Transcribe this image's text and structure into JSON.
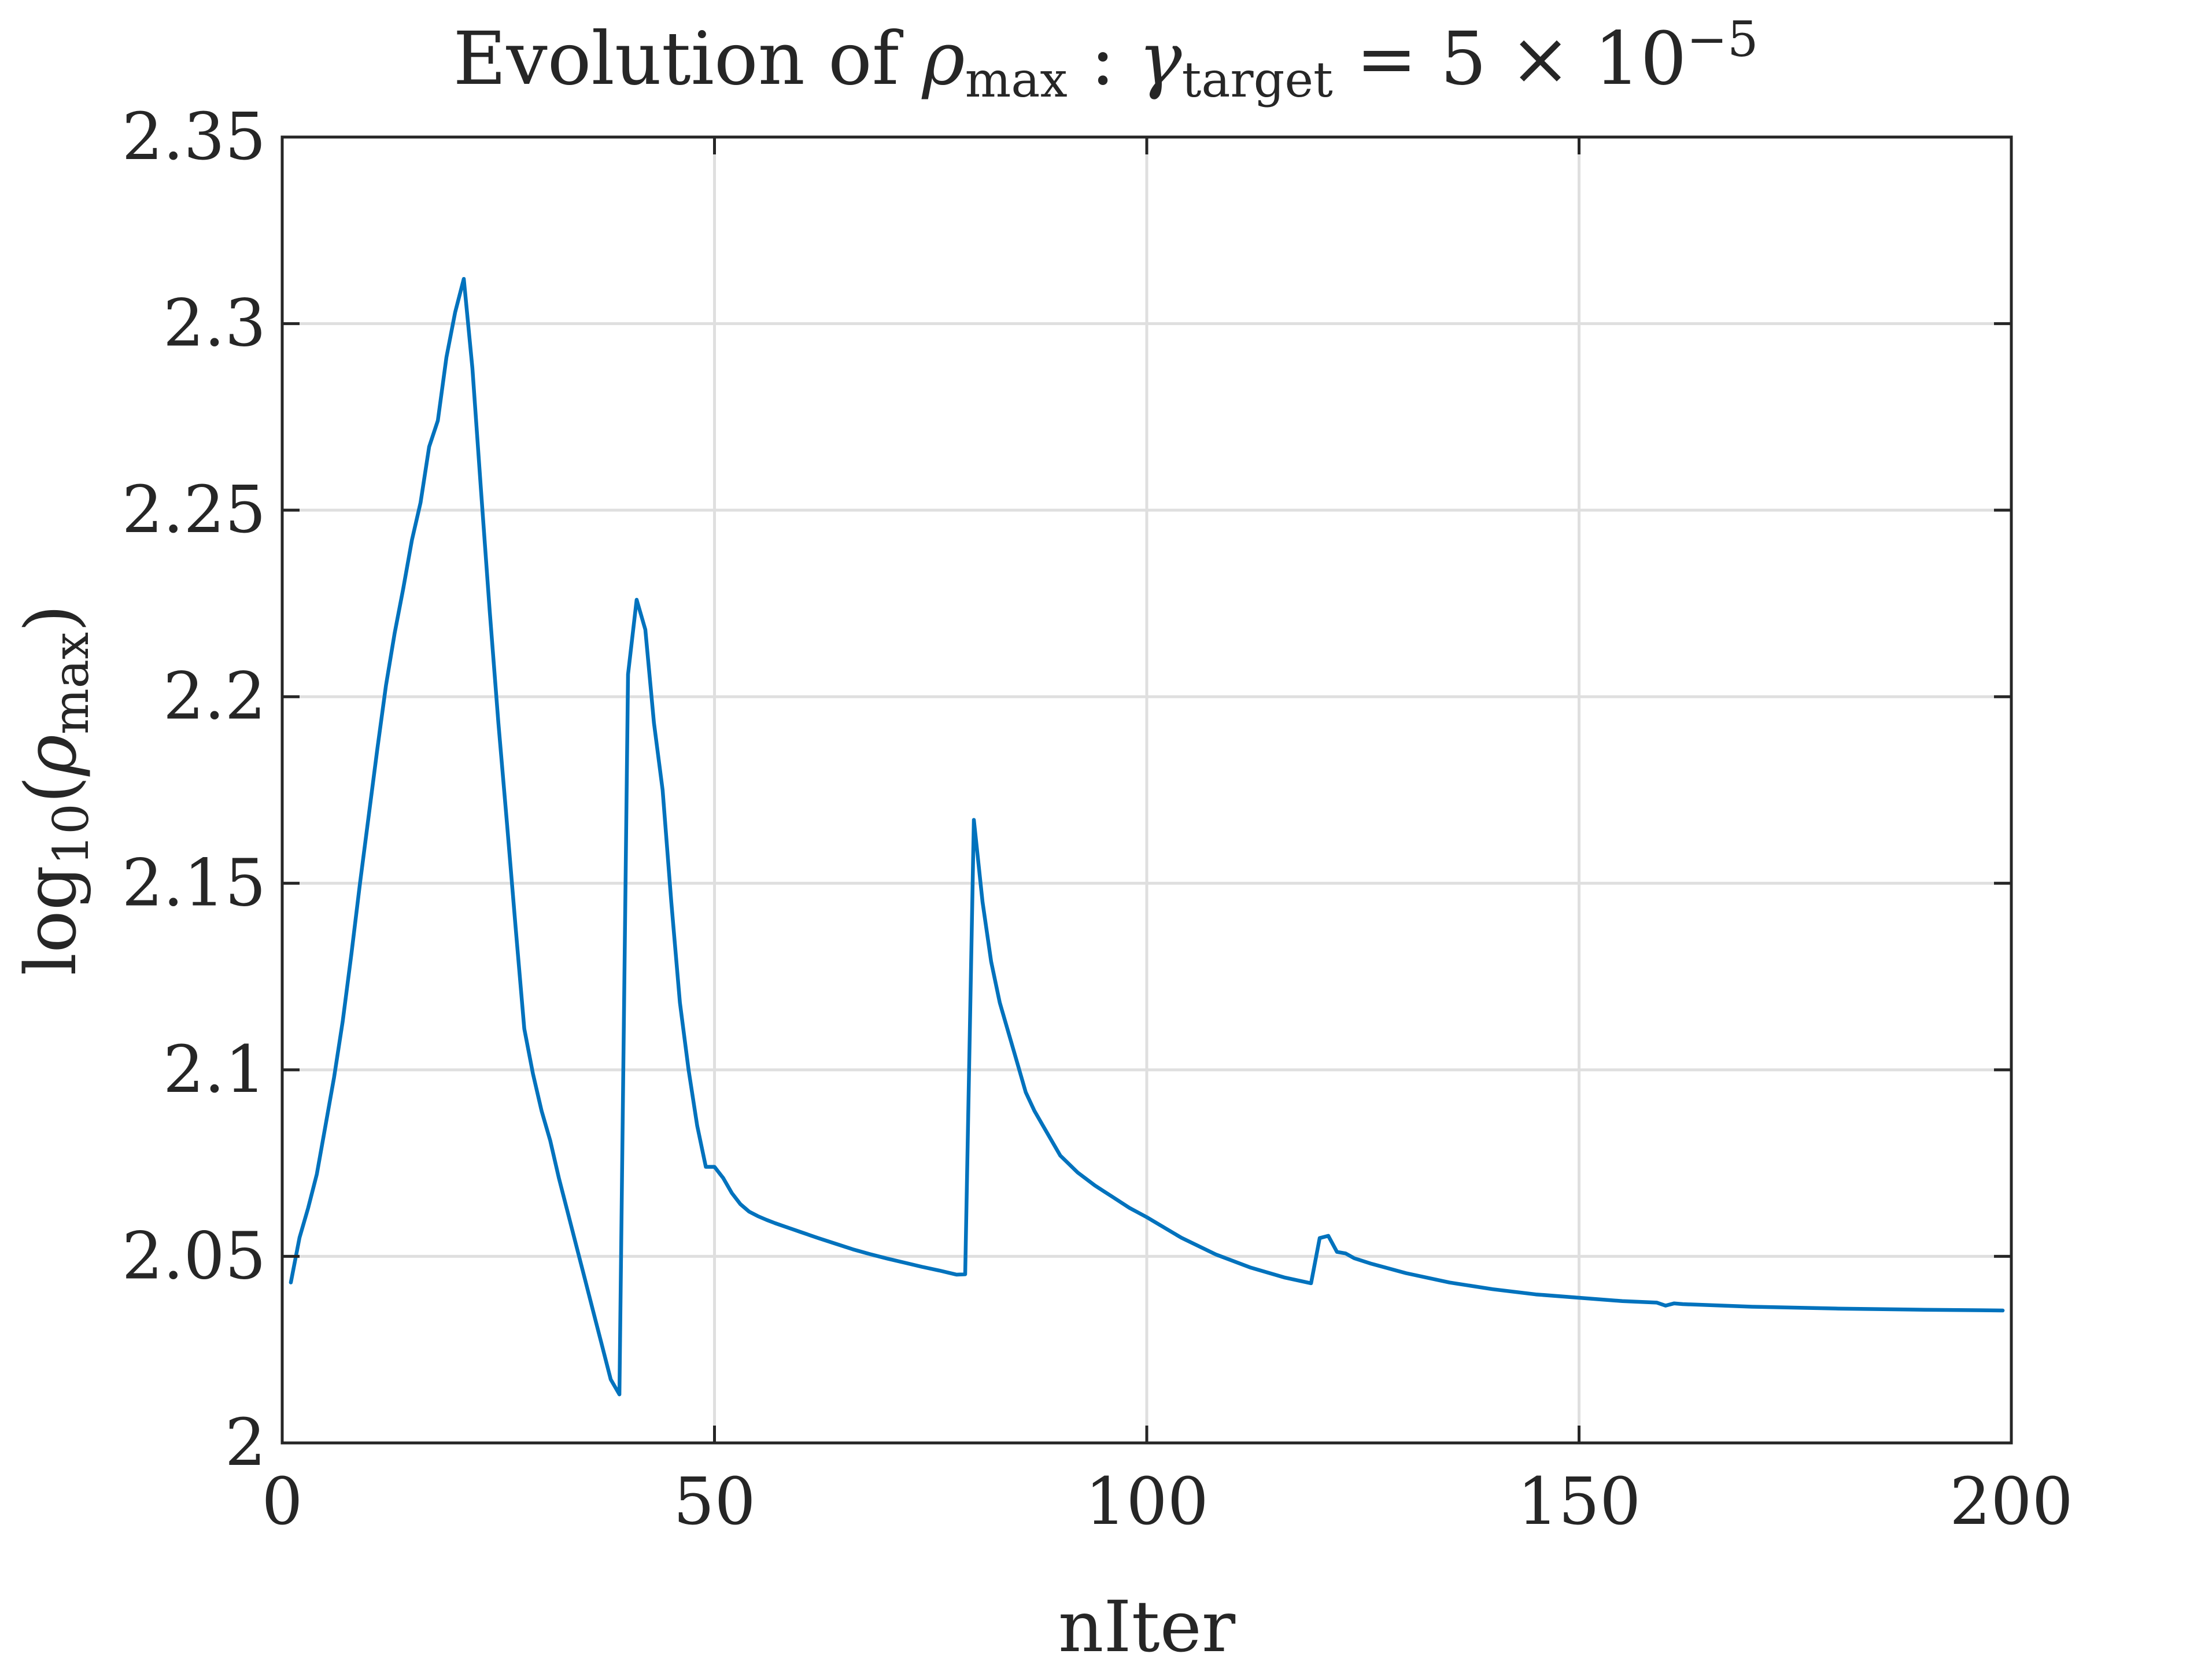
{
  "chart_data": {
    "type": "line",
    "title": {
      "prefix": "Evolution of ",
      "rho": "ρ",
      "rho_sub": "max",
      "colon": " : ",
      "gamma": "γ",
      "gamma_sub": "target",
      "equals": " = 5 × 10",
      "exponent": "−5"
    },
    "xlabel": "nIter",
    "ylabel": {
      "log": "log",
      "log_sub": "10",
      "open": "(",
      "rho": "ρ",
      "rho_sub": "max",
      "close": ")"
    },
    "xlim": [
      0,
      200
    ],
    "ylim": [
      2,
      2.35
    ],
    "xticks": [
      0,
      50,
      100,
      150,
      200
    ],
    "yticks": [
      2,
      2.05,
      2.1,
      2.15,
      2.2,
      2.25,
      2.3,
      2.35
    ],
    "xtick_labels": [
      "0",
      "50",
      "100",
      "150",
      "200"
    ],
    "ytick_labels": [
      "2",
      "2.05",
      "2.1",
      "2.15",
      "2.2",
      "2.25",
      "2.3",
      "2.35"
    ],
    "grid": true,
    "series": [
      {
        "color": "#0072BD",
        "x": [
          1,
          2,
          3,
          4,
          5,
          6,
          7,
          8,
          9,
          10,
          11,
          12,
          13,
          14,
          15,
          16,
          17,
          18,
          19,
          20,
          21,
          22,
          23,
          24,
          25,
          26,
          27,
          28,
          29,
          30,
          31,
          32,
          33,
          34,
          35,
          36,
          37,
          38,
          39,
          40,
          41,
          42,
          43,
          44,
          45,
          46,
          47,
          48,
          49,
          50,
          51,
          52,
          53,
          54,
          55,
          56,
          57,
          58,
          59,
          60,
          62,
          64,
          66,
          68,
          70,
          72,
          74,
          76,
          78,
          79,
          80,
          81,
          82,
          83,
          84,
          85,
          86,
          87,
          88,
          89,
          90,
          92,
          94,
          96,
          98,
          100,
          104,
          108,
          112,
          116,
          119,
          120,
          121,
          122,
          123,
          124,
          126,
          130,
          135,
          140,
          145,
          150,
          155,
          159,
          160,
          161,
          162,
          170,
          180,
          190,
          199
        ],
        "y": [
          2.043,
          2.055,
          2.063,
          2.072,
          2.085,
          2.098,
          2.113,
          2.131,
          2.15,
          2.168,
          2.186,
          2.203,
          2.217,
          2.229,
          2.242,
          2.252,
          2.267,
          2.274,
          2.291,
          2.303,
          2.312,
          2.288,
          2.255,
          2.223,
          2.193,
          2.166,
          2.138,
          2.111,
          2.099,
          2.089,
          2.081,
          2.071,
          2.062,
          2.053,
          2.044,
          2.035,
          2.026,
          2.017,
          2.013,
          2.206,
          2.226,
          2.218,
          2.193,
          2.175,
          2.145,
          2.118,
          2.1,
          2.085,
          2.074,
          2.074,
          2.071,
          2.067,
          2.064,
          2.062,
          2.0608,
          2.0598,
          2.0589,
          2.0581,
          2.0573,
          2.0565,
          2.0549,
          2.0534,
          2.0519,
          2.0506,
          2.0494,
          2.0483,
          2.0472,
          2.0462,
          2.0451,
          2.0452,
          2.167,
          2.145,
          2.129,
          2.118,
          2.11,
          2.102,
          2.094,
          2.089,
          2.085,
          2.081,
          2.077,
          2.0725,
          2.069,
          2.066,
          2.063,
          2.0605,
          2.055,
          2.0505,
          2.047,
          2.0443,
          2.0428,
          2.0549,
          2.0555,
          2.0512,
          2.0508,
          2.0495,
          2.048,
          2.0455,
          2.043,
          2.0412,
          2.0398,
          2.0389,
          2.038,
          2.0376,
          2.0368,
          2.0374,
          2.0372,
          2.0365,
          2.036,
          2.0357,
          2.0355
        ]
      }
    ]
  }
}
